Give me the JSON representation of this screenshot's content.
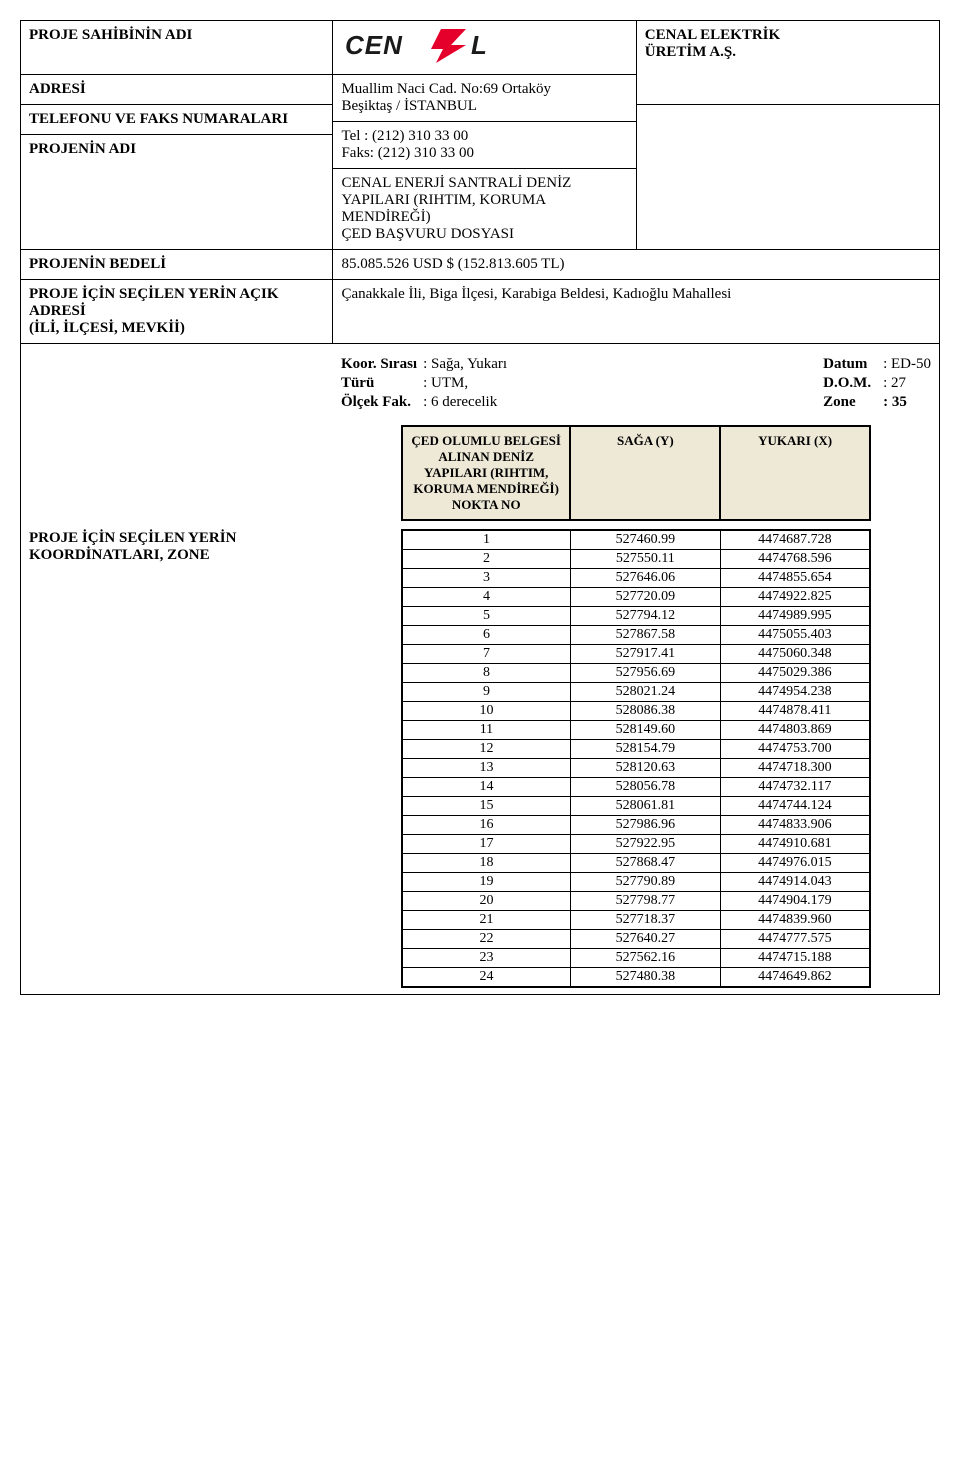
{
  "header": {
    "owner_label": "PROJE SAHİBİNİN ADI",
    "address_label": "ADRESİ",
    "address_value": "Muallim Naci Cad. No:69 Ortaköy\nBeşiktaş / İSTANBUL",
    "phone_label": "TELEFONU VE FAKS NUMARALARI",
    "tel_line": "Tel  : (212) 310 33 00",
    "fax_line": "Faks: (212) 310 33 00",
    "project_name_label": "PROJENİN ADI",
    "project_name_value": "CENAL ENERJİ SANTRALİ DENİZ YAPILARI (RIHTIM, KORUMA MENDİREĞİ)\nÇED BAŞVURU DOSYASI",
    "project_budget_label": "PROJENİN BEDELİ",
    "project_budget_value": "85.085.526 USD $ (152.813.605 TL)",
    "selected_place_label": "PROJE İÇİN SEÇİLEN YERİN AÇIK ADRESİ\n(İLİ, İLÇESİ, MEVKİİ)",
    "selected_place_value": "Çanakkale İli, Biga İlçesi, Karabiga Beldesi, Kadıoğlu Mahallesi",
    "company_line1": "CENAL ELEKTRİK",
    "company_line2": "ÜRETİM A.Ş.",
    "logo_text_left": "CEN",
    "logo_text_right": "L"
  },
  "meta": {
    "koor_label": "Koor. Sırası",
    "koor_value": ": Sağa, Yukarı",
    "turu_label": "Türü",
    "turu_value": ": UTM,",
    "olcek_label": "Ölçek Fak.",
    "olcek_value": ": 6 derecelik",
    "datum_label": "Datum",
    "datum_value": ": ED-50",
    "dom_label": "D.O.M.",
    "dom_value": ": 27",
    "zone_label": "Zone",
    "zone_value": ": 35"
  },
  "inner_table": {
    "col_a": "ÇED OLUMLU BELGESİ ALINAN DENİZ YAPILARI (RIHTIM, KORUMA MENDİREĞİ) NOKTA NO",
    "col_b": "SAĞA (Y)",
    "col_c": "YUKARI (X)"
  },
  "coord_label": "PROJE İÇİN SEÇİLEN YERİN KOORDİNATLARI, ZONE",
  "rows": [
    {
      "n": "1",
      "y": "527460.99",
      "x": "4474687.728"
    },
    {
      "n": "2",
      "y": "527550.11",
      "x": "4474768.596"
    },
    {
      "n": "3",
      "y": "527646.06",
      "x": "4474855.654"
    },
    {
      "n": "4",
      "y": "527720.09",
      "x": "4474922.825"
    },
    {
      "n": "5",
      "y": "527794.12",
      "x": "4474989.995"
    },
    {
      "n": "6",
      "y": "527867.58",
      "x": "4475055.403"
    },
    {
      "n": "7",
      "y": "527917.41",
      "x": "4475060.348"
    },
    {
      "n": "8",
      "y": "527956.69",
      "x": "4475029.386"
    },
    {
      "n": "9",
      "y": "528021.24",
      "x": "4474954.238"
    },
    {
      "n": "10",
      "y": "528086.38",
      "x": "4474878.411"
    },
    {
      "n": "11",
      "y": "528149.60",
      "x": "4474803.869"
    },
    {
      "n": "12",
      "y": "528154.79",
      "x": "4474753.700"
    },
    {
      "n": "13",
      "y": "528120.63",
      "x": "4474718.300"
    },
    {
      "n": "14",
      "y": "528056.78",
      "x": "4474732.117"
    },
    {
      "n": "15",
      "y": "528061.81",
      "x": "4474744.124"
    },
    {
      "n": "16",
      "y": "527986.96",
      "x": "4474833.906"
    },
    {
      "n": "17",
      "y": "527922.95",
      "x": "4474910.681"
    },
    {
      "n": "18",
      "y": "527868.47",
      "x": "4474976.015"
    },
    {
      "n": "19",
      "y": "527790.89",
      "x": "4474914.043"
    },
    {
      "n": "20",
      "y": "527798.77",
      "x": "4474904.179"
    },
    {
      "n": "21",
      "y": "527718.37",
      "x": "4474839.960"
    },
    {
      "n": "22",
      "y": "527640.27",
      "x": "4474777.575"
    },
    {
      "n": "23",
      "y": "527562.16",
      "x": "4474715.188"
    },
    {
      "n": "24",
      "y": "527480.38",
      "x": "4474649.862"
    }
  ],
  "colors": {
    "header_bg": "#eee8d7",
    "border": "#000000",
    "logo_red": "#e4002b",
    "text": "#000000"
  }
}
